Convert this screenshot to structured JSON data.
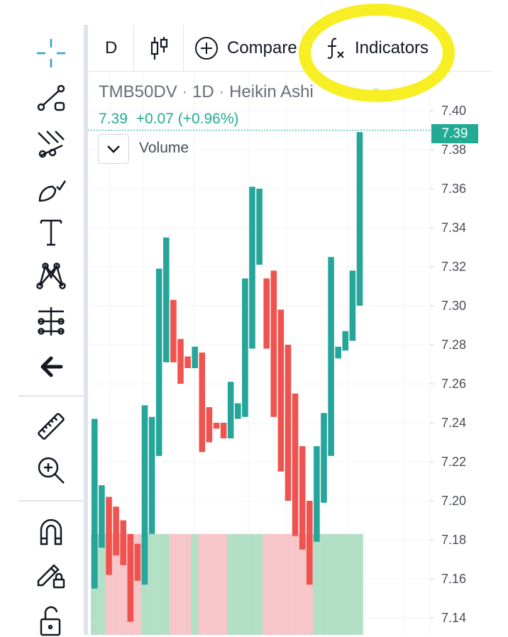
{
  "header": {
    "interval": "D",
    "compare_label": "Compare",
    "indicators_label": "Indicators"
  },
  "legend": {
    "symbol": "TMB50DV",
    "interval": "1D",
    "chart_style": "Heikin Ashi",
    "separator": "·",
    "last_price": "7.39",
    "change": "+0.07 (+0.96%)",
    "volume_label": "Volume"
  },
  "price_tag": "7.39",
  "toolbar": {
    "tools": [
      "crosshair-icon",
      "trend-line-icon",
      "pitchfork-icon",
      "brush-icon",
      "text-icon",
      "pattern-icon",
      "prediction-icon",
      "back-arrow-icon",
      "ruler-icon",
      "zoom-in-icon",
      "magnet-icon",
      "lock-drawing-icon",
      "unlock-icon"
    ]
  },
  "colors": {
    "up": "#26a69a",
    "down": "#ef5350",
    "up_volume": "#b2dfc6",
    "down_volume": "#f7c6c8",
    "accent": "#22ab94",
    "highlight": "#f7ef23"
  },
  "chart_data": {
    "type": "candlestick",
    "style": "Heikin Ashi",
    "ylim": [
      7.13,
      7.4
    ],
    "yticks": [
      "7.40",
      "7.38",
      "7.36",
      "7.34",
      "7.32",
      "7.30",
      "7.28",
      "7.26",
      "7.24",
      "7.22",
      "7.20",
      "7.18",
      "7.16",
      "7.14"
    ],
    "last_price": 7.39,
    "candles": [
      {
        "dir": "up",
        "open": 7.155,
        "close": 7.242
      },
      {
        "dir": "up",
        "open": 7.176,
        "close": 7.208
      },
      {
        "dir": "down",
        "open": 7.202,
        "close": 7.162
      },
      {
        "dir": "down",
        "open": 7.197,
        "close": 7.172
      },
      {
        "dir": "down",
        "open": 7.19,
        "close": 7.167
      },
      {
        "dir": "down",
        "open": 7.183,
        "close": 7.138
      },
      {
        "dir": "down",
        "open": 7.178,
        "close": 7.159
      },
      {
        "dir": "up",
        "open": 7.157,
        "close": 7.249
      },
      {
        "dir": "up",
        "open": 7.183,
        "close": 7.243
      },
      {
        "dir": "up",
        "open": 7.223,
        "close": 7.319
      },
      {
        "dir": "up",
        "open": 7.271,
        "close": 7.335
      },
      {
        "dir": "down",
        "open": 7.303,
        "close": 7.271
      },
      {
        "dir": "down",
        "open": 7.283,
        "close": 7.26
      },
      {
        "dir": "down",
        "open": 7.274,
        "close": 7.268
      },
      {
        "dir": "up",
        "open": 7.268,
        "close": 7.279
      },
      {
        "dir": "down",
        "open": 7.276,
        "close": 7.225
      },
      {
        "dir": "down",
        "open": 7.248,
        "close": 7.23
      },
      {
        "dir": "down",
        "open": 7.24,
        "close": 7.237
      },
      {
        "dir": "down",
        "open": 7.24,
        "close": 7.232
      },
      {
        "dir": "up",
        "open": 7.232,
        "close": 7.261
      },
      {
        "dir": "up",
        "open": 7.242,
        "close": 7.25
      },
      {
        "dir": "up",
        "open": 7.243,
        "close": 7.314
      },
      {
        "dir": "up",
        "open": 7.278,
        "close": 7.361
      },
      {
        "dir": "up",
        "open": 7.321,
        "close": 7.36
      },
      {
        "dir": "down",
        "open": 7.314,
        "close": 7.278
      },
      {
        "dir": "down",
        "open": 7.318,
        "close": 7.243
      },
      {
        "dir": "down",
        "open": 7.298,
        "close": 7.215
      },
      {
        "dir": "down",
        "open": 7.28,
        "close": 7.2
      },
      {
        "dir": "down",
        "open": 7.255,
        "close": 7.182
      },
      {
        "dir": "down",
        "open": 7.228,
        "close": 7.175
      },
      {
        "dir": "down",
        "open": 7.2,
        "close": 7.157
      },
      {
        "dir": "up",
        "open": 7.179,
        "close": 7.228
      },
      {
        "dir": "up",
        "open": 7.199,
        "close": 7.245
      },
      {
        "dir": "up",
        "open": 7.223,
        "close": 7.325
      },
      {
        "dir": "up",
        "open": 7.273,
        "close": 7.279
      },
      {
        "dir": "up",
        "open": 7.277,
        "close": 7.287
      },
      {
        "dir": "up",
        "open": 7.282,
        "close": 7.318
      },
      {
        "dir": "up",
        "open": 7.3,
        "close": 7.389
      }
    ],
    "volume": [
      20,
      20,
      20,
      20,
      20,
      20,
      20,
      20,
      20,
      20,
      20,
      20,
      20,
      20,
      20,
      20,
      20,
      20,
      20,
      20,
      20,
      20,
      20,
      20,
      20,
      20,
      20,
      20,
      20,
      20,
      20,
      20,
      20,
      20,
      20,
      20,
      20,
      20
    ]
  }
}
